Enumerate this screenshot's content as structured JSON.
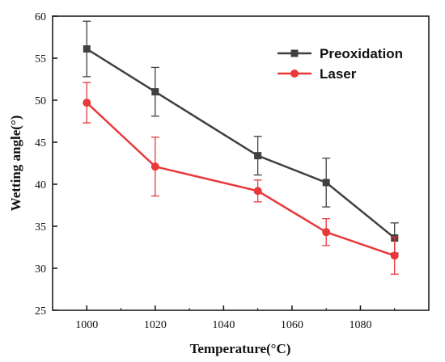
{
  "chart_data": {
    "type": "line",
    "xlabel": "Temperature(°C)",
    "ylabel": "Wetting angle(°)",
    "xlim": [
      990,
      1100
    ],
    "ylim": [
      25,
      60
    ],
    "x_ticks": [
      1000,
      1020,
      1040,
      1060,
      1080
    ],
    "y_ticks": [
      25,
      30,
      35,
      40,
      45,
      50,
      55,
      60
    ],
    "x_tick_labels": [
      "1000",
      "1020",
      "1040",
      "1060",
      "1080"
    ],
    "y_tick_labels": [
      "25",
      "30",
      "35",
      "40",
      "45",
      "50",
      "55",
      "60"
    ],
    "x": [
      1000,
      1020,
      1050,
      1070,
      1090
    ],
    "series": [
      {
        "name": "Preoxidation",
        "color": "#404040",
        "marker": "square",
        "values": [
          56.1,
          51.0,
          43.4,
          40.2,
          33.6
        ],
        "errors": [
          3.3,
          2.9,
          2.3,
          2.9,
          1.8
        ]
      },
      {
        "name": "Laser",
        "color": "#e8383a",
        "marker": "circle",
        "values": [
          49.7,
          42.1,
          39.2,
          34.3,
          31.5
        ],
        "errors": [
          2.4,
          3.5,
          1.3,
          1.6,
          2.2
        ]
      }
    ],
    "grid": false,
    "legend": "top-right"
  }
}
